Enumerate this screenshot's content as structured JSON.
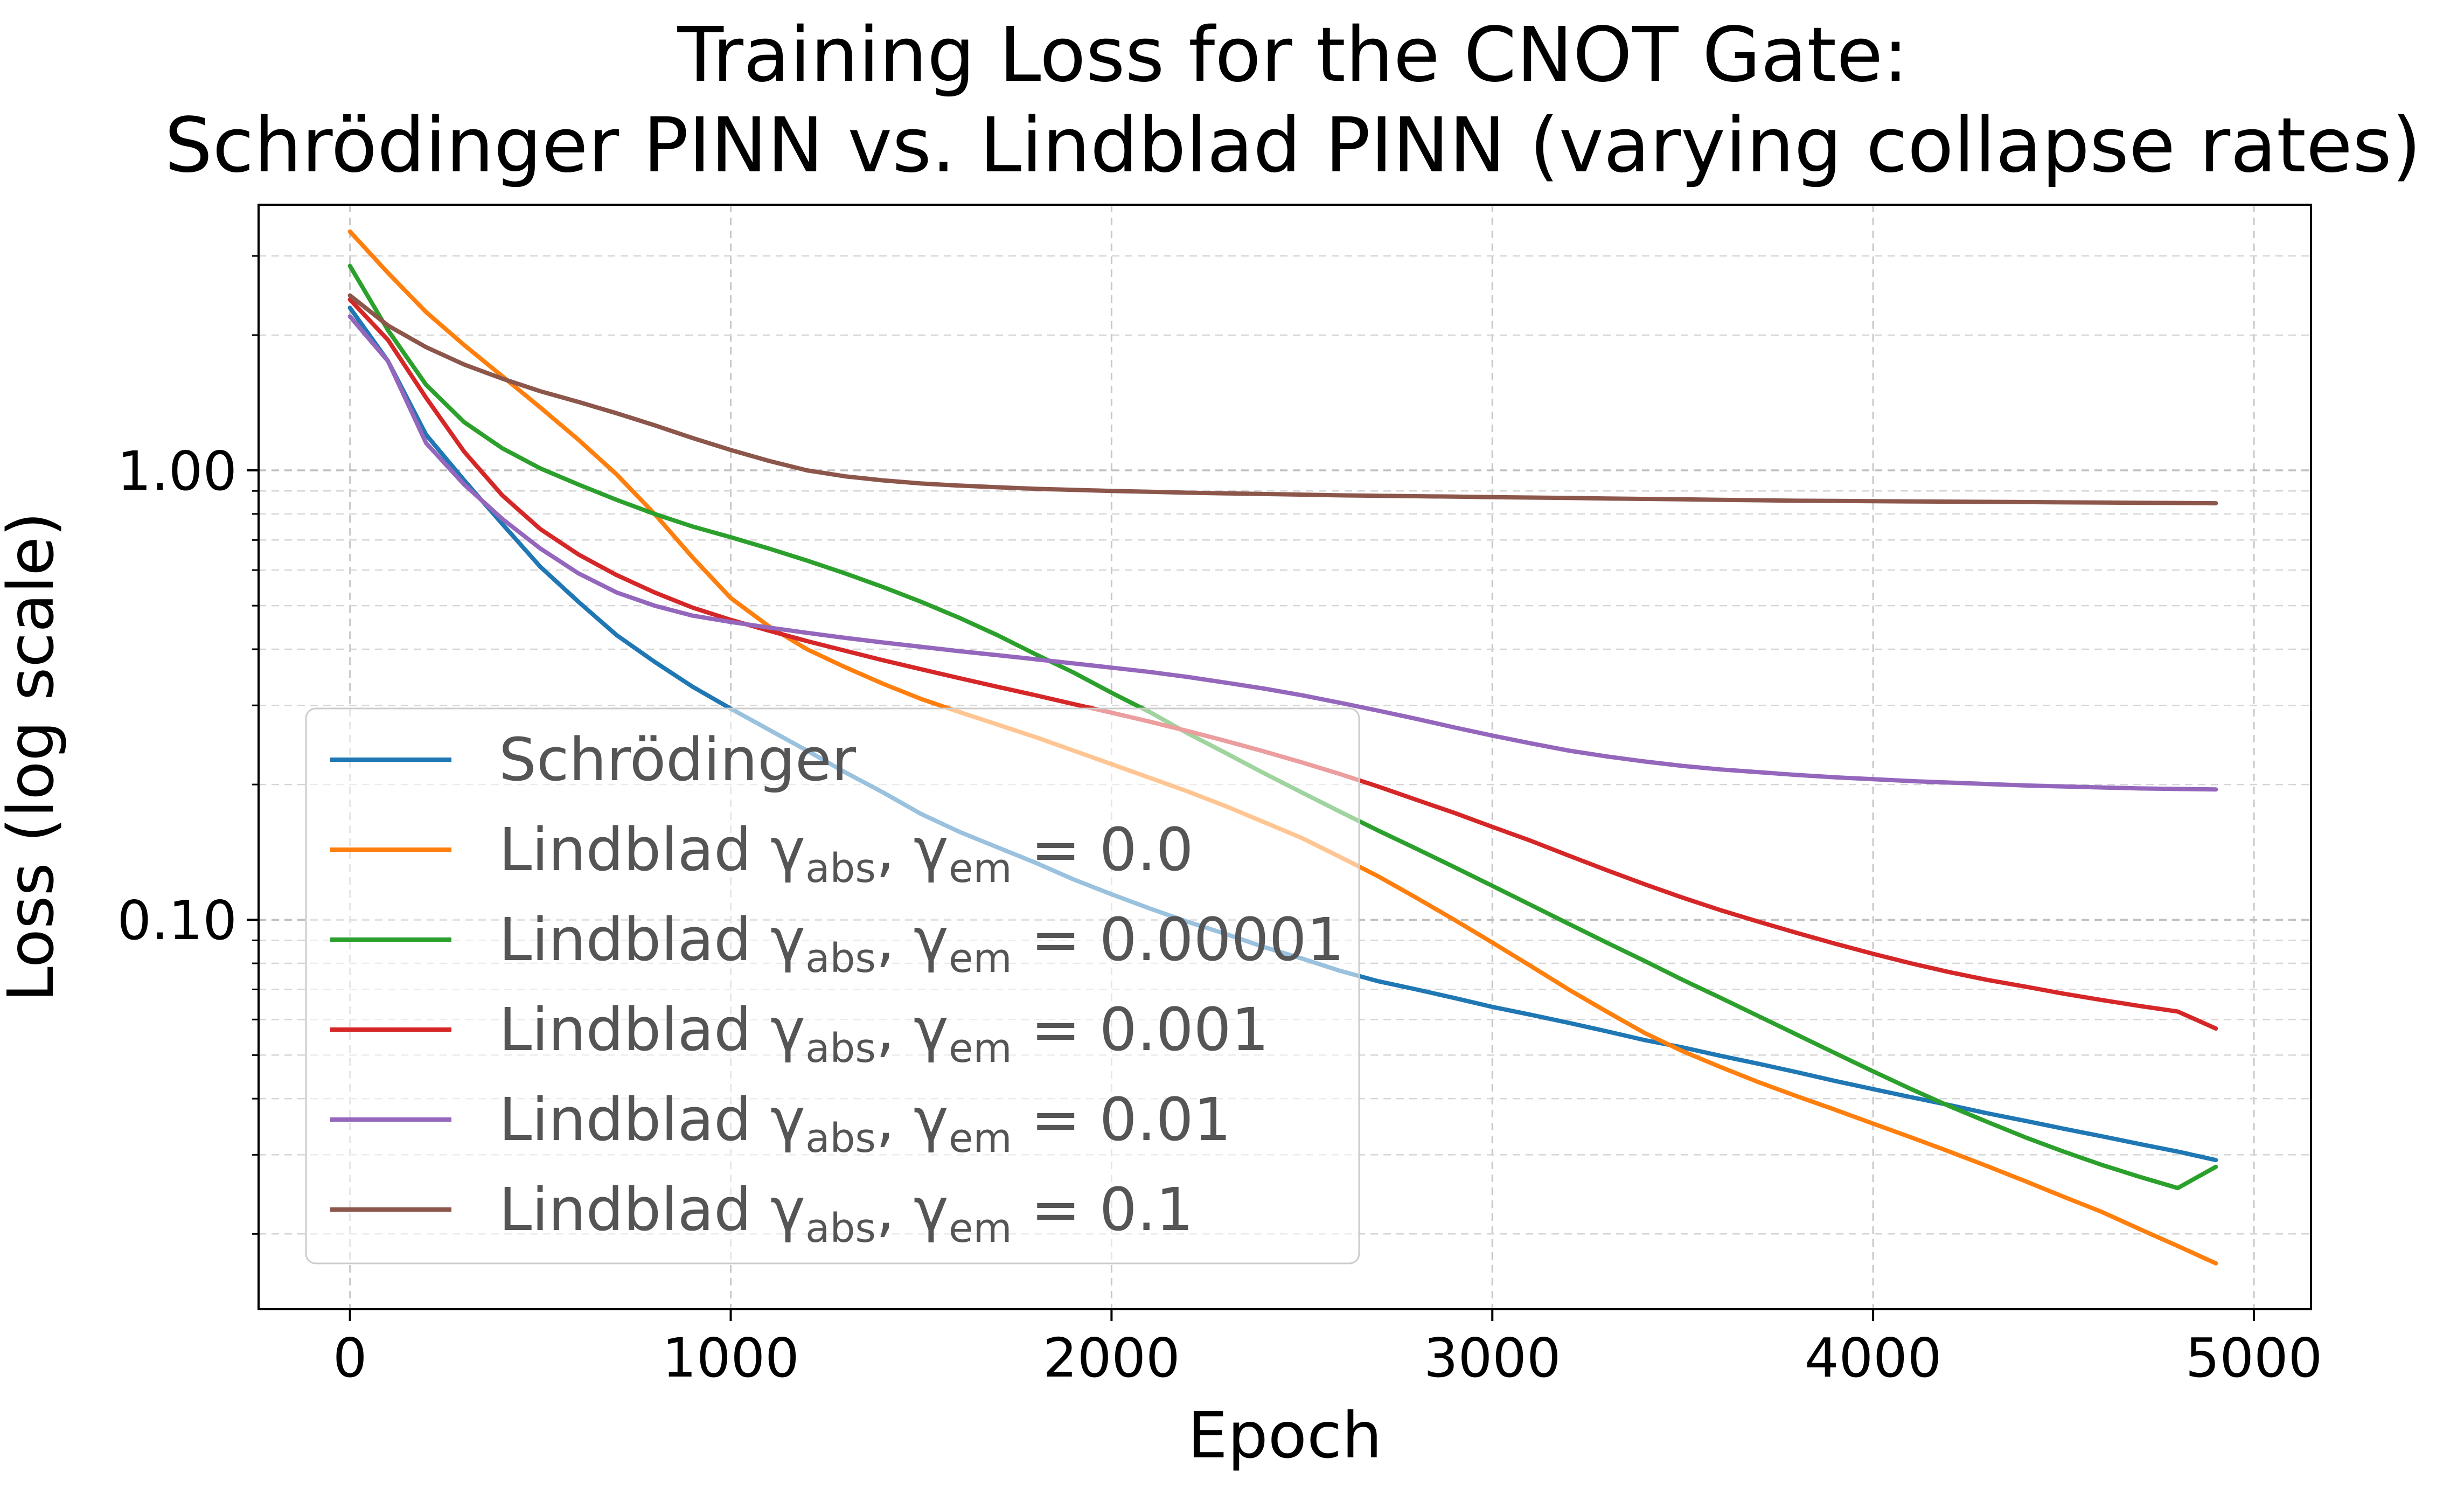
{
  "chart_data": {
    "type": "line",
    "title": [
      "Training Loss for the CNOT Gate:",
      "Schrödinger PINN vs. Lindblad PINN (varying collapse rates)"
    ],
    "xlabel": "Epoch",
    "ylabel": "Loss (log scale)",
    "xlim": [
      -240,
      5150
    ],
    "ylim": [
      0.0136,
      3.9
    ],
    "yscale": "log",
    "xticks": [
      0,
      1000,
      2000,
      3000,
      4000,
      5000
    ],
    "xtick_labels": [
      "0",
      "1000",
      "2000",
      "3000",
      "4000",
      "5000"
    ],
    "yticks": [
      0.1,
      1.0
    ],
    "ytick_labels": [
      "0.10",
      "1.00"
    ],
    "grid": true,
    "legend_position": "lower-left",
    "x": [
      0,
      100,
      200,
      300,
      400,
      500,
      600,
      700,
      800,
      900,
      1000,
      1100,
      1200,
      1300,
      1400,
      1500,
      1600,
      1700,
      1800,
      1900,
      2000,
      2100,
      2200,
      2300,
      2400,
      2500,
      2600,
      2700,
      2800,
      2900,
      3000,
      3100,
      3200,
      3300,
      3400,
      3500,
      3600,
      3700,
      3800,
      3900,
      4000,
      4100,
      4200,
      4300,
      4400,
      4500,
      4600,
      4700,
      4800,
      4900
    ],
    "series": [
      {
        "name": "Schrödinger",
        "label_prefix": "Schrödinger",
        "label_value": "",
        "color": "#1f77b4",
        "values": [
          2.3,
          1.75,
          1.2,
          0.95,
          0.76,
          0.61,
          0.51,
          0.43,
          0.375,
          0.33,
          0.295,
          0.265,
          0.238,
          0.213,
          0.192,
          0.172,
          0.157,
          0.145,
          0.134,
          0.123,
          0.114,
          0.106,
          0.099,
          0.093,
          0.087,
          0.082,
          0.077,
          0.073,
          0.07,
          0.067,
          0.064,
          0.0615,
          0.059,
          0.0565,
          0.054,
          0.052,
          0.0498,
          0.0478,
          0.0458,
          0.0438,
          0.042,
          0.0403,
          0.0387,
          0.0371,
          0.0357,
          0.0343,
          0.033,
          0.0317,
          0.0305,
          0.0292
        ]
      },
      {
        "name": "Lindblad gamma_abs, gamma_em = 0.0",
        "label_prefix": "Lindblad",
        "label_value": "0.0",
        "color": "#ff7f0e",
        "values": [
          3.4,
          2.75,
          2.25,
          1.9,
          1.62,
          1.38,
          1.17,
          0.98,
          0.8,
          0.64,
          0.52,
          0.45,
          0.4,
          0.365,
          0.335,
          0.31,
          0.29,
          0.272,
          0.255,
          0.238,
          0.222,
          0.207,
          0.193,
          0.179,
          0.165,
          0.152,
          0.138,
          0.125,
          0.112,
          0.1,
          0.089,
          0.079,
          0.07,
          0.0625,
          0.056,
          0.051,
          0.047,
          0.0435,
          0.0405,
          0.0378,
          0.0352,
          0.0328,
          0.0305,
          0.0283,
          0.0262,
          0.0242,
          0.0224,
          0.0205,
          0.0188,
          0.0172
        ]
      },
      {
        "name": "Lindblad gamma_abs, gamma_em = 0.00001",
        "label_prefix": "Lindblad",
        "label_value": "0.00001",
        "color": "#2ca02c",
        "values": [
          2.85,
          2.05,
          1.55,
          1.28,
          1.12,
          1.01,
          0.93,
          0.86,
          0.8,
          0.75,
          0.71,
          0.67,
          0.63,
          0.59,
          0.55,
          0.51,
          0.47,
          0.43,
          0.39,
          0.355,
          0.32,
          0.29,
          0.26,
          0.235,
          0.212,
          0.192,
          0.174,
          0.158,
          0.144,
          0.131,
          0.119,
          0.108,
          0.098,
          0.089,
          0.081,
          0.0735,
          0.067,
          0.061,
          0.0555,
          0.0505,
          0.046,
          0.042,
          0.0385,
          0.0355,
          0.0328,
          0.0305,
          0.0285,
          0.0268,
          0.0253,
          0.0282
        ]
      },
      {
        "name": "Lindblad gamma_abs, gamma_em = 0.001",
        "label_prefix": "Lindblad",
        "label_value": "0.001",
        "color": "#d62728",
        "values": [
          2.4,
          1.95,
          1.45,
          1.1,
          0.88,
          0.74,
          0.65,
          0.585,
          0.535,
          0.495,
          0.465,
          0.44,
          0.417,
          0.397,
          0.378,
          0.361,
          0.345,
          0.33,
          0.316,
          0.302,
          0.289,
          0.276,
          0.263,
          0.25,
          0.237,
          0.224,
          0.211,
          0.198,
          0.185,
          0.173,
          0.161,
          0.15,
          0.139,
          0.129,
          0.12,
          0.112,
          0.105,
          0.099,
          0.0935,
          0.0885,
          0.084,
          0.08,
          0.0765,
          0.0735,
          0.071,
          0.0685,
          0.0663,
          0.0643,
          0.0625,
          0.0573
        ]
      },
      {
        "name": "Lindblad gamma_abs, gamma_em = 0.01",
        "label_prefix": "Lindblad",
        "label_value": "0.01",
        "color": "#9467bd",
        "values": [
          2.2,
          1.75,
          1.15,
          0.93,
          0.78,
          0.67,
          0.59,
          0.535,
          0.5,
          0.475,
          0.46,
          0.447,
          0.435,
          0.424,
          0.414,
          0.405,
          0.396,
          0.388,
          0.38,
          0.372,
          0.364,
          0.356,
          0.347,
          0.337,
          0.327,
          0.316,
          0.304,
          0.292,
          0.28,
          0.268,
          0.257,
          0.247,
          0.238,
          0.231,
          0.225,
          0.22,
          0.216,
          0.213,
          0.21,
          0.2075,
          0.2055,
          0.2035,
          0.202,
          0.2005,
          0.199,
          0.198,
          0.197,
          0.196,
          0.1955,
          0.195
        ]
      },
      {
        "name": "Lindblad gamma_abs, gamma_em = 0.1",
        "label_prefix": "Lindblad",
        "label_value": "0.1",
        "color": "#8c564b",
        "values": [
          2.45,
          2.1,
          1.88,
          1.72,
          1.6,
          1.5,
          1.42,
          1.34,
          1.26,
          1.18,
          1.11,
          1.05,
          1.0,
          0.97,
          0.95,
          0.935,
          0.925,
          0.917,
          0.91,
          0.905,
          0.9,
          0.896,
          0.892,
          0.889,
          0.886,
          0.883,
          0.88,
          0.878,
          0.876,
          0.874,
          0.872,
          0.87,
          0.868,
          0.866,
          0.864,
          0.862,
          0.86,
          0.858,
          0.856,
          0.855,
          0.854,
          0.853,
          0.852,
          0.851,
          0.85,
          0.849,
          0.848,
          0.847,
          0.846,
          0.845
        ]
      }
    ]
  }
}
